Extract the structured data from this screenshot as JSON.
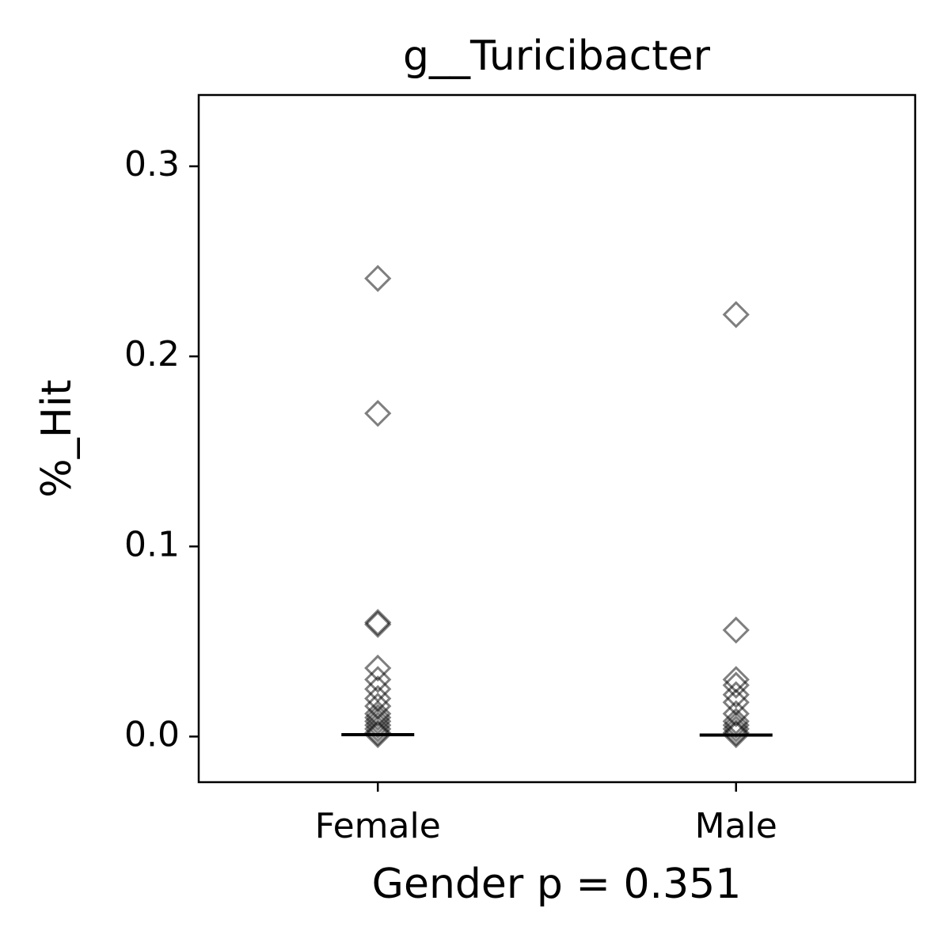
{
  "chart_data": {
    "type": "strip",
    "title": "g__Turicibacter",
    "x_label": "Gender p = 0.351",
    "y_label": "%_Hit",
    "categories": [
      "Female",
      "Male"
    ],
    "points": [
      [
        0.241,
        0.17,
        0.06,
        0.059,
        0.036,
        0.03,
        0.025,
        0.02,
        0.016,
        0.012,
        0.01,
        0.008,
        0.006,
        0.004,
        0.002,
        0.001
      ],
      [
        0.222,
        0.056,
        0.03,
        0.027,
        0.022,
        0.018,
        0.012,
        0.008,
        0.006,
        0.004,
        0.002,
        0.001
      ]
    ],
    "medians": [
      0.001,
      0.0008
    ],
    "color": "#000000",
    "ylim": [
      -0.024,
      0.3375
    ],
    "yticks": [
      {
        "value": 0,
        "label": "0.0"
      },
      0.1,
      0.2,
      0.3
    ]
  }
}
